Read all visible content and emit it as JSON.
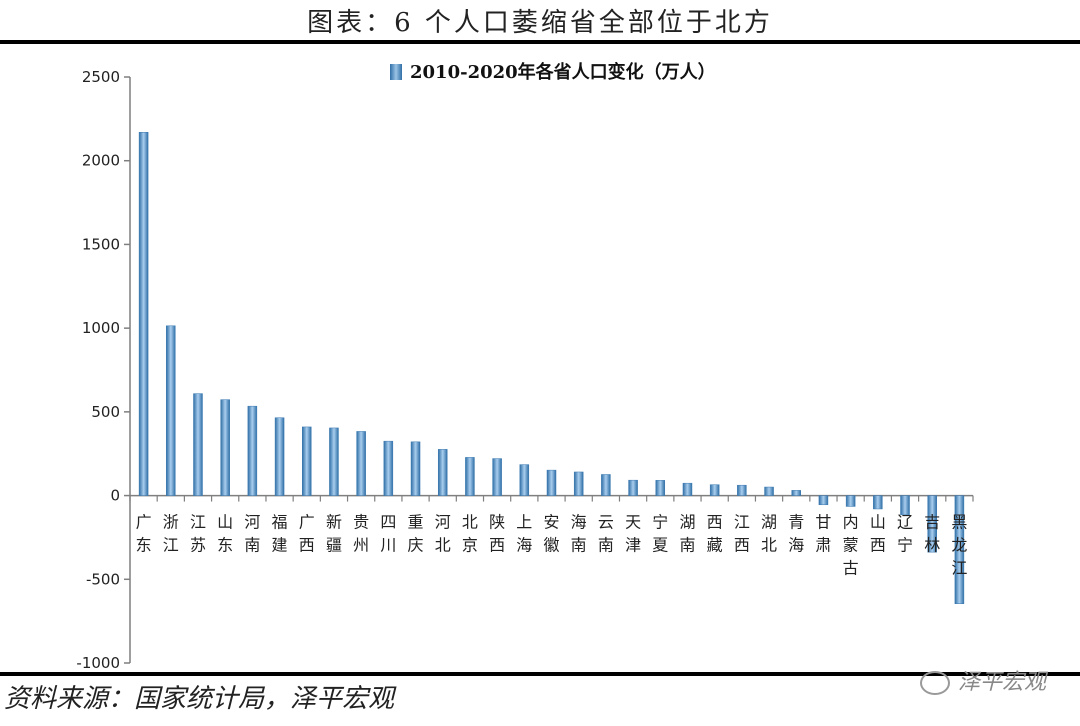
{
  "header": {
    "title": "图表：6 个人口萎缩省全部位于北方"
  },
  "footer": {
    "source": "资料来源：国家统计局，泽平宏观",
    "watermark": "泽平宏观"
  },
  "colors": {
    "bar": "#4a86bf",
    "bar_highlight": "#a9cdee",
    "axis": "#7f7f7f"
  },
  "chart_data": {
    "type": "bar",
    "legend": "2010-2020年各省人口变化（万人）",
    "legend_position": "top",
    "grid": false,
    "ylim": [
      -1000,
      2500
    ],
    "yticks": [
      2500,
      2000,
      1500,
      1000,
      500,
      0,
      -500,
      -1000
    ],
    "categories": [
      "广东",
      "浙江",
      "江苏",
      "山东",
      "河南",
      "福建",
      "广西",
      "新疆",
      "贵州",
      "四川",
      "重庆",
      "河北",
      "北京",
      "陕西",
      "上海",
      "安徽",
      "海南",
      "云南",
      "天津",
      "宁夏",
      "湖南",
      "西藏",
      "江西",
      "湖北",
      "青海",
      "甘肃",
      "内蒙古",
      "山西",
      "辽宁",
      "吉林",
      "黑龙江"
    ],
    "values": [
      2170,
      1014,
      609,
      573,
      534,
      465,
      410,
      404,
      383,
      325,
      321,
      276,
      228,
      221,
      185,
      152,
      141,
      126,
      92,
      91,
      74,
      65,
      62,
      51,
      31,
      -55,
      -65,
      -80,
      -115,
      -338,
      -646
    ]
  }
}
